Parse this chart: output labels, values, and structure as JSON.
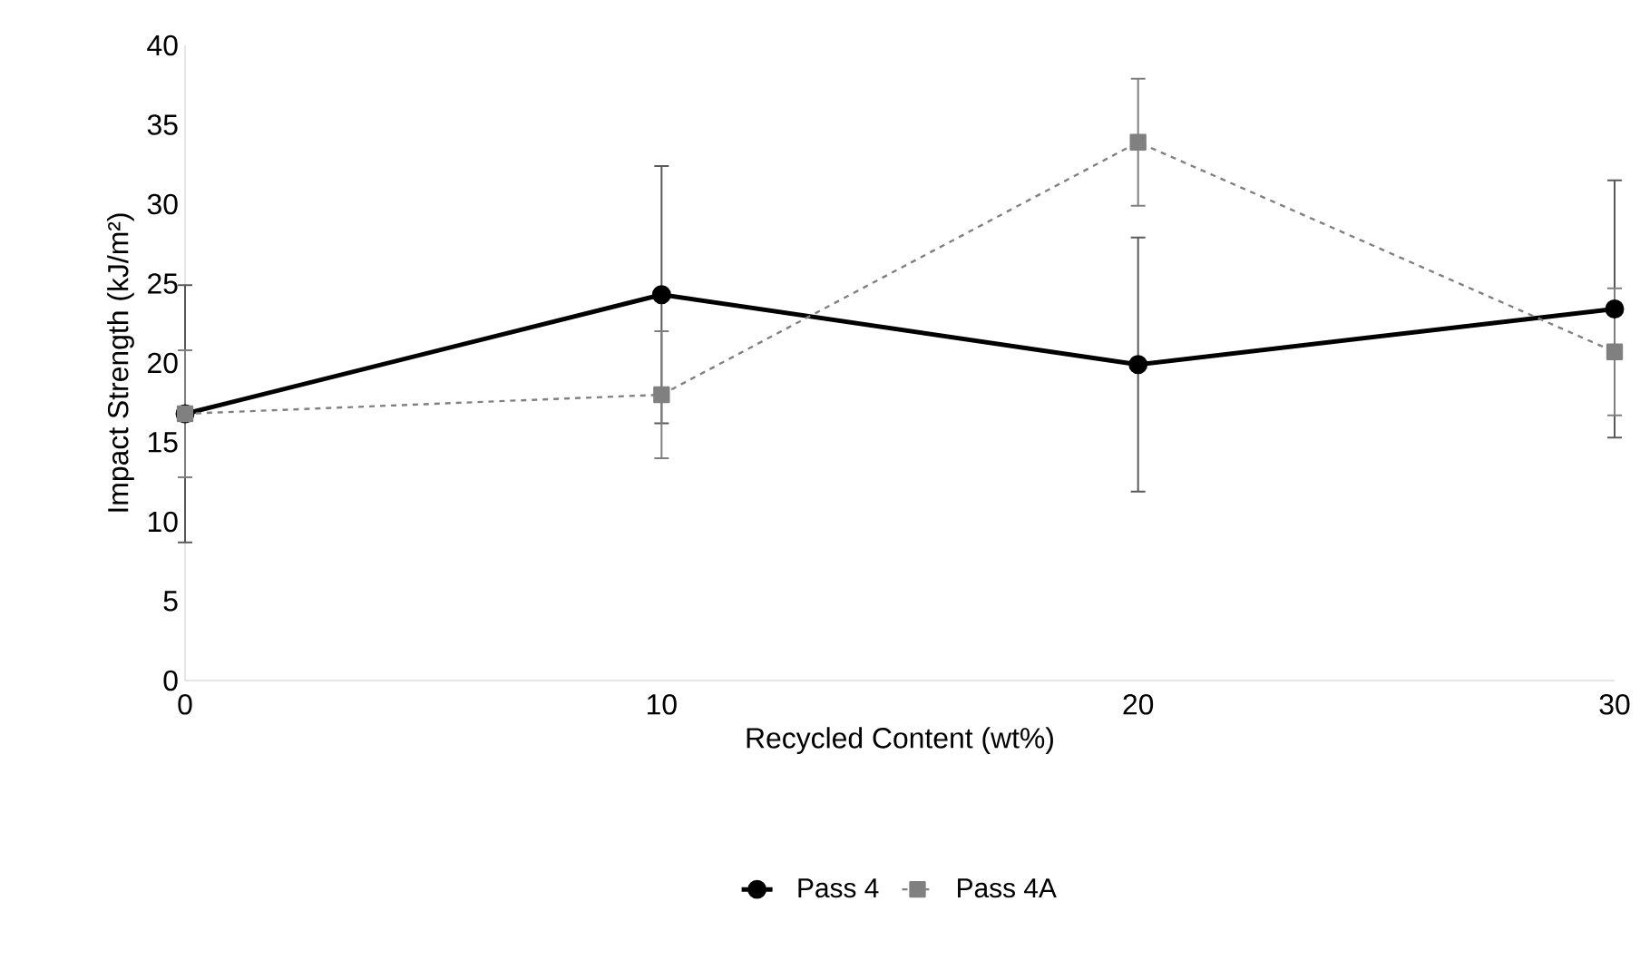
{
  "chart_data": {
    "type": "line",
    "xlabel": "Recycled Content (wt%)",
    "ylabel": "Impact Strength (kJ/m²)",
    "x": [
      0,
      10,
      20,
      30
    ],
    "xlim": [
      0,
      30
    ],
    "xticks": [
      0,
      10,
      20,
      30
    ],
    "ylim": [
      0,
      40
    ],
    "yticks": [
      0,
      5,
      10,
      15,
      20,
      25,
      30,
      35,
      40
    ],
    "grid": false,
    "legend": "bottom",
    "series": [
      {
        "name": "Pass 4",
        "color": "#000000",
        "marker": "circle",
        "line_style": "solid",
        "values": [
          16.8,
          24.3,
          19.9,
          23.4
        ],
        "errors": [
          8.1,
          8.1,
          8,
          8.1
        ]
      },
      {
        "name": "Pass 4A",
        "color": "#808080",
        "marker": "square",
        "line_style": "dashed",
        "values": [
          16.8,
          18.0,
          33.9,
          20.7
        ],
        "errors": [
          4,
          4,
          4,
          4
        ]
      }
    ]
  }
}
